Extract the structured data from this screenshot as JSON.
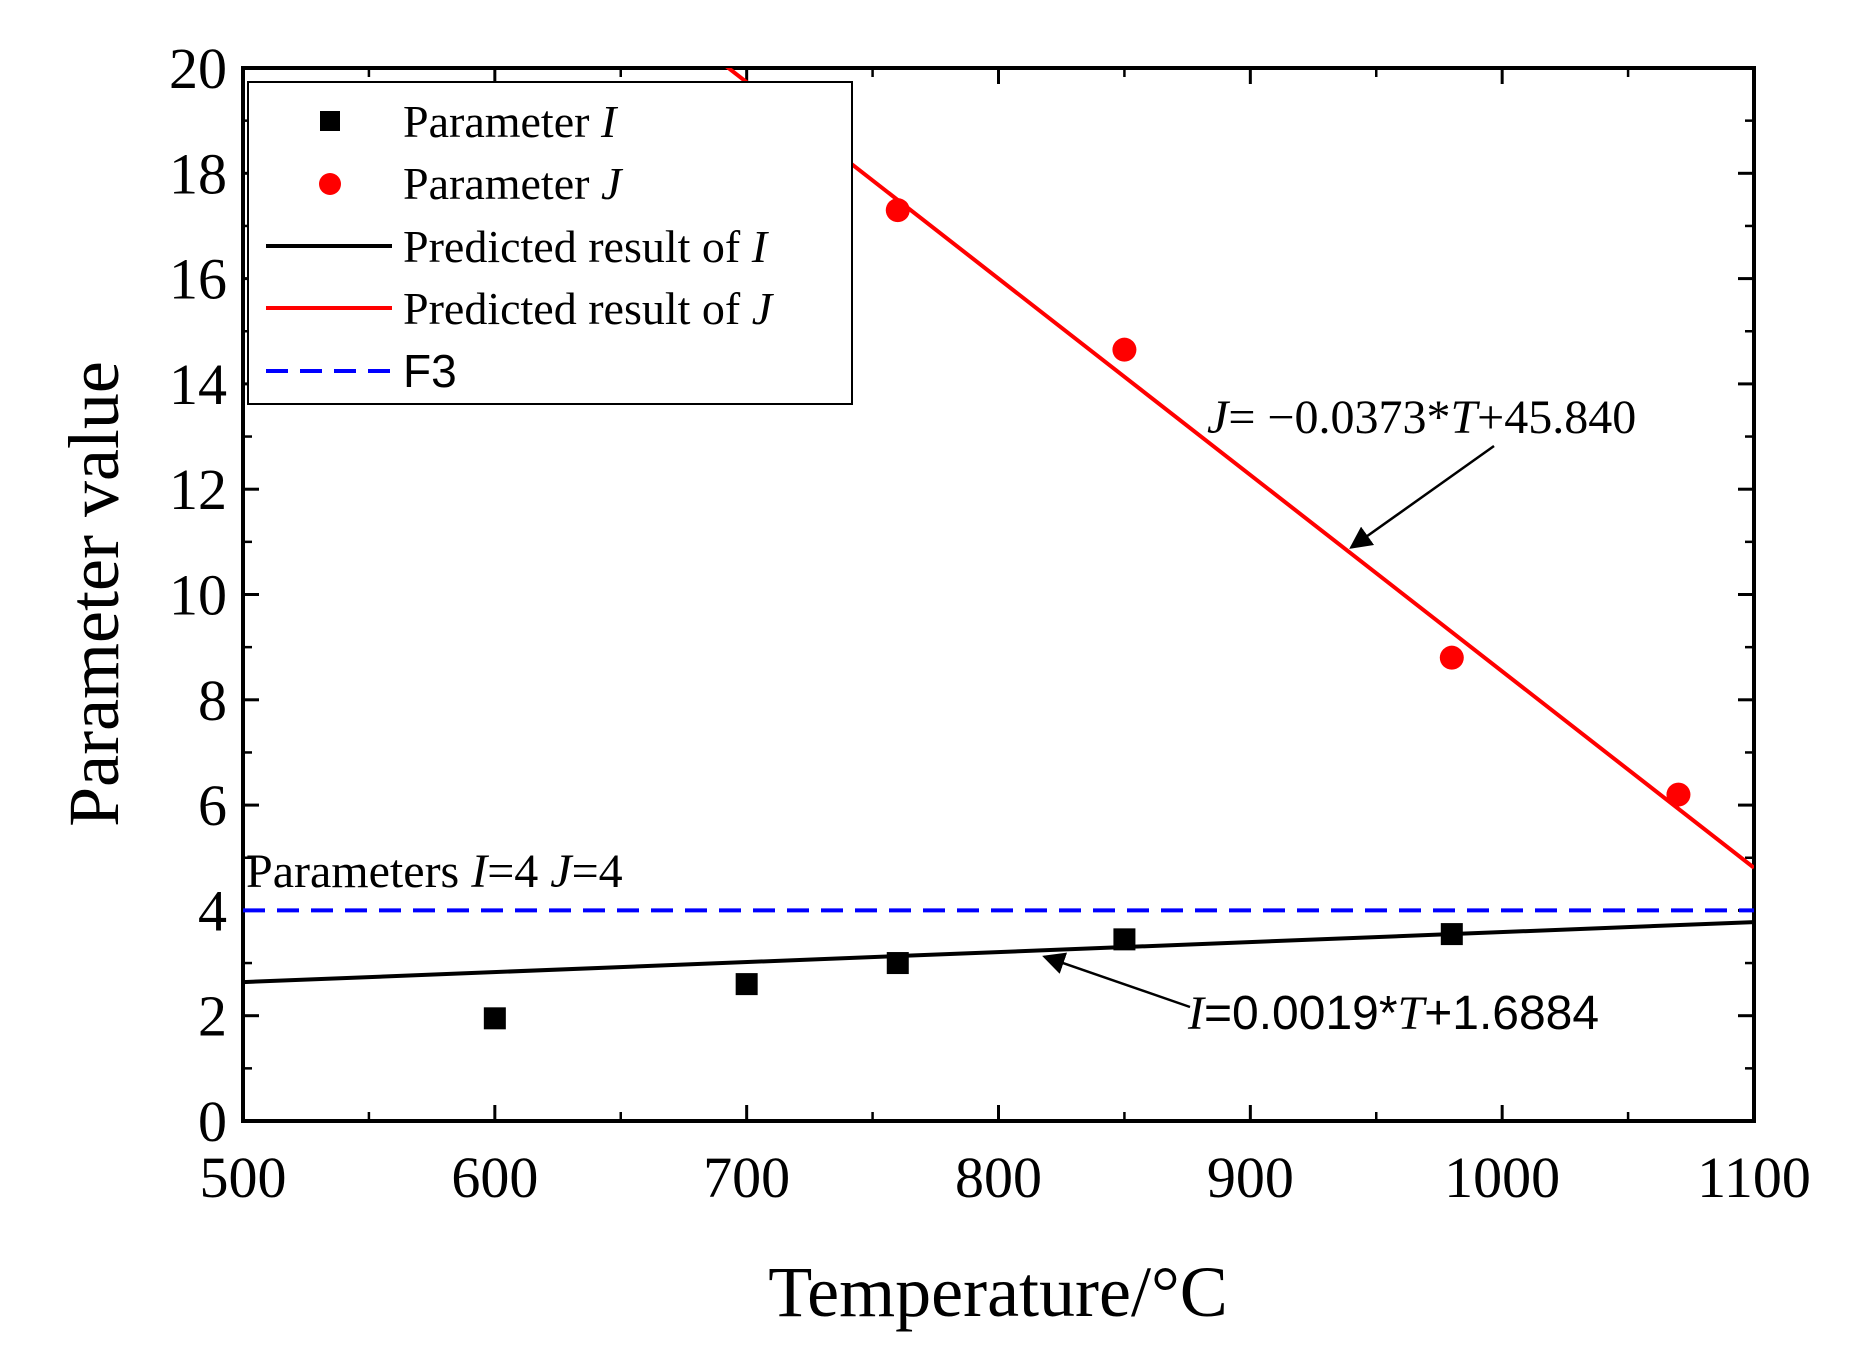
{
  "chart_data": {
    "type": "scatter",
    "xlabel": "Temperature/°C",
    "ylabel": "Parameter value",
    "xlim": [
      500,
      1100
    ],
    "ylim": [
      0,
      20
    ],
    "x_ticks": [
      500,
      600,
      700,
      800,
      900,
      1000,
      1100
    ],
    "y_ticks": [
      0,
      2,
      4,
      6,
      8,
      10,
      12,
      14,
      16,
      18,
      20
    ],
    "legend_position": "top-left",
    "series": [
      {
        "name": "Parameter I",
        "name_prefix": "Parameter ",
        "name_var": "I",
        "kind": "scatter",
        "marker": "square",
        "color": "#000000",
        "points": [
          {
            "x": 600,
            "y": 1.95
          },
          {
            "x": 700,
            "y": 2.6
          },
          {
            "x": 760,
            "y": 3.0
          },
          {
            "x": 850,
            "y": 3.45
          },
          {
            "x": 980,
            "y": 3.55
          }
        ]
      },
      {
        "name": "Parameter J",
        "name_prefix": "Parameter ",
        "name_var": "J",
        "kind": "scatter",
        "marker": "circle",
        "color": "#ff0000",
        "points": [
          {
            "x": 760,
            "y": 17.3
          },
          {
            "x": 850,
            "y": 14.65
          },
          {
            "x": 980,
            "y": 8.8
          },
          {
            "x": 1070,
            "y": 6.2
          }
        ]
      },
      {
        "name": "Predicted result of I",
        "name_prefix": "Predicted result of ",
        "name_var": "I",
        "kind": "line",
        "color": "#000000",
        "slope": 0.0019,
        "intercept": 1.6884
      },
      {
        "name": "Predicted result of J",
        "name_prefix": "Predicted result of ",
        "name_var": "J",
        "kind": "line",
        "color": "#ff0000",
        "slope": -0.0373,
        "intercept": 45.84
      },
      {
        "name": "F3",
        "kind": "hline",
        "dashed": true,
        "color": "#0000ff",
        "y": 4
      }
    ],
    "annotations": {
      "f3_label": {
        "pre": "Parameters ",
        "v1": "I",
        "mid": "=4 ",
        "v2": "J",
        "post": "=4"
      },
      "j_equation": {
        "var": "J",
        "eq": "= −0.0373*",
        "t": "T",
        "rest": "+45.840",
        "arrow_x": 940
      },
      "i_equation": {
        "var": "I",
        "eq": "=0.0019*",
        "t": "T",
        "rest": "+1.6884",
        "arrow_x": 815
      }
    }
  }
}
